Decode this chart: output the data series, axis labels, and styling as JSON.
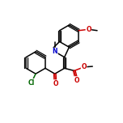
{
  "bg": "white",
  "bc": "black",
  "NC": "#0000cc",
  "OC": "#cc0000",
  "ClC": "#006600",
  "lw": 1.1,
  "dlw": 0.9,
  "doff": 0.09,
  "fs": 5.5,
  "figsize": [
    1.52,
    1.52
  ],
  "dpi": 100,
  "xlim": [
    0,
    10
  ],
  "ylim": [
    0,
    10
  ]
}
